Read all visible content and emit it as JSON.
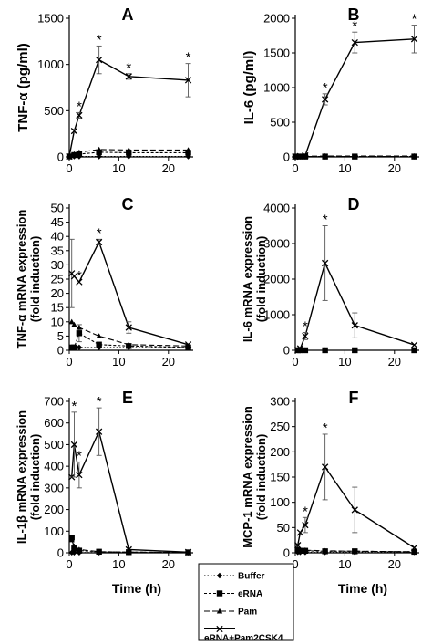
{
  "x_axis_label": "Time (h)",
  "legend": [
    "Buffer",
    "eRNA",
    "Pam",
    "eRNA+Pam2CSK4"
  ],
  "chart_data": [
    {
      "panel": "A",
      "type": "line",
      "ylabel": "TNF-α (pg/ml)",
      "xlim": [
        0,
        25
      ],
      "xticks": [
        0,
        10,
        20
      ],
      "ylim": [
        0,
        1500
      ],
      "yticks": [
        0,
        500,
        1000,
        1500
      ],
      "series": [
        {
          "name": "Buffer",
          "x": [
            0,
            1,
            2,
            6,
            12,
            24
          ],
          "y": [
            5,
            5,
            5,
            5,
            5,
            5
          ],
          "err": [
            0,
            0,
            0,
            0,
            0,
            0
          ]
        },
        {
          "name": "eRNA",
          "x": [
            0,
            1,
            2,
            6,
            12,
            24
          ],
          "y": [
            5,
            20,
            30,
            50,
            45,
            45
          ],
          "err": [
            0,
            0,
            0,
            0,
            0,
            0
          ]
        },
        {
          "name": "Pam",
          "x": [
            0,
            1,
            2,
            6,
            12,
            24
          ],
          "y": [
            5,
            30,
            50,
            80,
            75,
            75
          ],
          "err": [
            0,
            0,
            0,
            0,
            0,
            0
          ]
        },
        {
          "name": "eRNA+Pam2CSK4",
          "x": [
            0,
            1,
            2,
            6,
            12,
            24
          ],
          "y": [
            5,
            280,
            450,
            1050,
            870,
            830
          ],
          "err": [
            0,
            20,
            30,
            150,
            30,
            180
          ]
        }
      ],
      "stars": [
        2,
        6,
        12,
        24
      ]
    },
    {
      "panel": "B",
      "type": "line",
      "ylabel": "IL-6 (pg/ml)",
      "xlim": [
        0,
        25
      ],
      "xticks": [
        0,
        10,
        20
      ],
      "ylim": [
        0,
        2000
      ],
      "yticks": [
        0,
        500,
        1000,
        1500,
        2000
      ],
      "series": [
        {
          "name": "Buffer",
          "x": [
            0,
            1,
            2,
            6,
            12,
            24
          ],
          "y": [
            5,
            5,
            5,
            5,
            5,
            5
          ],
          "err": [
            0,
            0,
            0,
            0,
            0,
            0
          ]
        },
        {
          "name": "eRNA",
          "x": [
            0,
            1,
            2,
            6,
            12,
            24
          ],
          "y": [
            5,
            5,
            5,
            5,
            5,
            5
          ],
          "err": [
            0,
            0,
            0,
            0,
            0,
            0
          ]
        },
        {
          "name": "Pam",
          "x": [
            0,
            1,
            2,
            6,
            12,
            24
          ],
          "y": [
            5,
            8,
            10,
            12,
            12,
            12
          ],
          "err": [
            0,
            0,
            0,
            0,
            0,
            0
          ]
        },
        {
          "name": "eRNA+Pam2CSK4",
          "x": [
            0,
            1,
            2,
            6,
            12,
            24
          ],
          "y": [
            5,
            10,
            20,
            830,
            1650,
            1700
          ],
          "err": [
            0,
            0,
            0,
            80,
            150,
            200
          ]
        }
      ],
      "stars": [
        6,
        12,
        24
      ]
    },
    {
      "panel": "C",
      "type": "line",
      "ylabel": [
        "TNF-α mRNA expression",
        "(fold induction)"
      ],
      "xlim": [
        0,
        25
      ],
      "xticks": [
        0,
        10,
        20
      ],
      "ylim": [
        0,
        50
      ],
      "yticks": [
        0,
        5,
        10,
        15,
        20,
        25,
        30,
        35,
        40,
        45,
        50
      ],
      "series": [
        {
          "name": "Buffer",
          "x": [
            0.5,
            1,
            2,
            6,
            12,
            24
          ],
          "y": [
            1,
            1,
            1,
            1,
            1,
            1
          ],
          "err": [
            0,
            0,
            0,
            0,
            0,
            0
          ]
        },
        {
          "name": "eRNA",
          "x": [
            0.5,
            1,
            2,
            6,
            12,
            24
          ],
          "y": [
            1,
            1,
            6,
            2,
            1.5,
            1
          ],
          "err": [
            0,
            0,
            3,
            0,
            0,
            0
          ]
        },
        {
          "name": "Pam",
          "x": [
            0.5,
            1,
            2,
            6,
            12,
            24
          ],
          "y": [
            10,
            9,
            8,
            5,
            2,
            1.5
          ],
          "err": [
            0,
            0,
            0,
            0,
            0,
            0
          ]
        },
        {
          "name": "eRNA+Pam2CSK4",
          "x": [
            0.5,
            1,
            2,
            6,
            12,
            24
          ],
          "y": [
            27,
            26,
            24,
            38,
            8,
            2
          ],
          "err": [
            12,
            0,
            0,
            1,
            2,
            0
          ]
        }
      ],
      "stars": [
        2,
        6
      ]
    },
    {
      "panel": "D",
      "type": "line",
      "ylabel": [
        "IL-6 mRNA expression",
        "(fold induction)"
      ],
      "xlim": [
        0,
        25
      ],
      "xticks": [
        0,
        10,
        20
      ],
      "ylim": [
        0,
        4000
      ],
      "yticks": [
        0,
        1000,
        2000,
        3000,
        4000
      ],
      "series": [
        {
          "name": "Buffer",
          "x": [
            0.5,
            1,
            2,
            6,
            12,
            24
          ],
          "y": [
            1,
            1,
            1,
            1,
            1,
            1
          ],
          "err": [
            0,
            0,
            0,
            0,
            0,
            0
          ]
        },
        {
          "name": "eRNA",
          "x": [
            0.5,
            1,
            2,
            6,
            12,
            24
          ],
          "y": [
            1,
            1,
            1,
            1,
            1,
            1
          ],
          "err": [
            0,
            0,
            0,
            0,
            0,
            0
          ]
        },
        {
          "name": "Pam",
          "x": [
            0.5,
            1,
            2,
            6,
            12,
            24
          ],
          "y": [
            1,
            1,
            1,
            1,
            1,
            1
          ],
          "err": [
            0,
            0,
            0,
            0,
            0,
            0
          ]
        },
        {
          "name": "eRNA+Pam2CSK4",
          "x": [
            0.5,
            1,
            2,
            6,
            12,
            24
          ],
          "y": [
            10,
            50,
            400,
            2450,
            700,
            150
          ],
          "err": [
            0,
            0,
            100,
            1050,
            350,
            0
          ]
        }
      ],
      "stars": [
        2,
        6
      ]
    },
    {
      "panel": "E",
      "type": "line",
      "ylabel": [
        "IL-1β mRNA expression",
        "(fold induction)"
      ],
      "xlim": [
        0,
        25
      ],
      "xticks": [
        0,
        10,
        20
      ],
      "ylim": [
        0,
        700
      ],
      "yticks": [
        0,
        100,
        200,
        300,
        400,
        500,
        600,
        700
      ],
      "series": [
        {
          "name": "Buffer",
          "x": [
            0.5,
            1,
            2,
            6,
            12,
            24
          ],
          "y": [
            1,
            1,
            1,
            1,
            1,
            1
          ],
          "err": [
            0,
            0,
            0,
            0,
            0,
            0
          ]
        },
        {
          "name": "eRNA",
          "x": [
            0.5,
            1,
            2,
            6,
            12,
            24
          ],
          "y": [
            70,
            20,
            10,
            5,
            3,
            2
          ],
          "err": [
            0,
            0,
            0,
            0,
            0,
            0
          ]
        },
        {
          "name": "Pam",
          "x": [
            0.5,
            1,
            2,
            6,
            12,
            24
          ],
          "y": [
            60,
            30,
            15,
            5,
            3,
            2
          ],
          "err": [
            0,
            0,
            0,
            0,
            0,
            0
          ]
        },
        {
          "name": "eRNA+Pam2CSK4",
          "x": [
            0.5,
            1,
            2,
            6,
            12,
            24
          ],
          "y": [
            350,
            500,
            360,
            560,
            15,
            3
          ],
          "err": [
            0,
            150,
            60,
            110,
            0,
            0
          ]
        }
      ],
      "stars": [
        1,
        2,
        6
      ]
    },
    {
      "panel": "F",
      "type": "line",
      "ylabel": [
        "MCP-1 mRNA expression",
        "(fold induction)"
      ],
      "xlim": [
        0,
        25
      ],
      "xticks": [
        0,
        10,
        20
      ],
      "ylim": [
        0,
        300
      ],
      "yticks": [
        0,
        50,
        100,
        150,
        200,
        250,
        300
      ],
      "series": [
        {
          "name": "Buffer",
          "x": [
            0.5,
            1,
            2,
            6,
            12,
            24
          ],
          "y": [
            1,
            1,
            1,
            1,
            1,
            1
          ],
          "err": [
            0,
            0,
            0,
            0,
            0,
            0
          ]
        },
        {
          "name": "eRNA",
          "x": [
            0.5,
            1,
            2,
            6,
            12,
            24
          ],
          "y": [
            5,
            4,
            4,
            3,
            3,
            2
          ],
          "err": [
            0,
            0,
            0,
            0,
            0,
            0
          ]
        },
        {
          "name": "Pam",
          "x": [
            0.5,
            1,
            2,
            6,
            12,
            24
          ],
          "y": [
            8,
            6,
            5,
            4,
            3,
            2
          ],
          "err": [
            0,
            0,
            0,
            0,
            0,
            0
          ]
        },
        {
          "name": "eRNA+Pam2CSK4",
          "x": [
            0.5,
            1,
            2,
            6,
            12,
            24
          ],
          "y": [
            15,
            40,
            55,
            170,
            85,
            10
          ],
          "err": [
            0,
            0,
            15,
            65,
            45,
            0
          ]
        }
      ],
      "stars": [
        2,
        6
      ]
    }
  ]
}
